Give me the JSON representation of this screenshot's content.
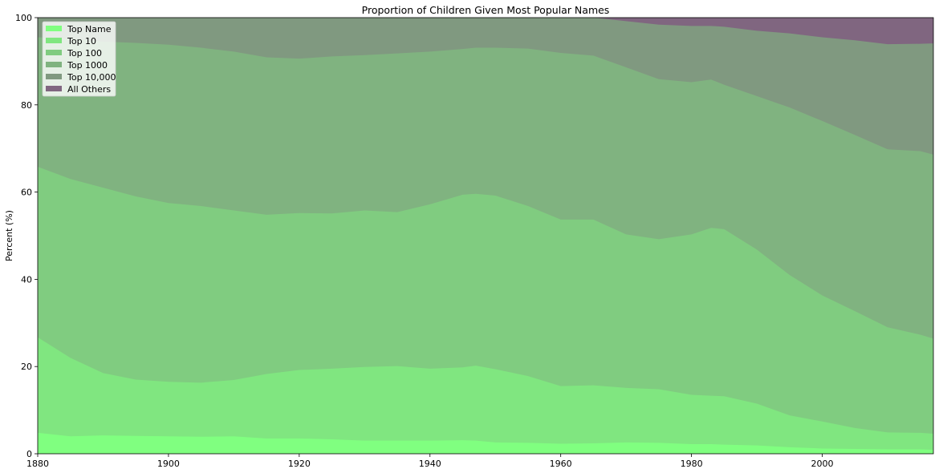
{
  "chart_data": {
    "type": "area",
    "stacked": true,
    "title": "Proportion of Children Given Most Popular Names",
    "xlabel": "",
    "ylabel": "Percent (%)",
    "xlim": [
      1880,
      2017
    ],
    "ylim": [
      0,
      100
    ],
    "x_ticks": [
      1880,
      1900,
      1920,
      1940,
      1960,
      1980,
      2000
    ],
    "y_ticks": [
      0,
      20,
      40,
      60,
      80,
      100
    ],
    "grid": false,
    "legend_position": "top-left",
    "x": [
      1880,
      1885,
      1890,
      1895,
      1900,
      1905,
      1910,
      1915,
      1920,
      1925,
      1930,
      1935,
      1940,
      1945,
      1947,
      1950,
      1955,
      1960,
      1965,
      1970,
      1975,
      1980,
      1983,
      1985,
      1990,
      1995,
      2000,
      2005,
      2010,
      2015,
      2017
    ],
    "series": [
      {
        "name": "Top Name",
        "color": "#80ff80",
        "values": [
          4.8,
          4.0,
          4.2,
          4.1,
          4.0,
          3.9,
          4.0,
          3.5,
          3.5,
          3.3,
          3.0,
          3.0,
          3.0,
          3.1,
          3.0,
          2.6,
          2.5,
          2.3,
          2.4,
          2.6,
          2.5,
          2.2,
          2.2,
          2.1,
          1.9,
          1.5,
          1.2,
          1.1,
          1.0,
          1.0,
          0.9
        ]
      },
      {
        "name": "Top 10",
        "color": "#80e680",
        "values": [
          26.7,
          22.0,
          18.5,
          17.0,
          16.5,
          16.3,
          16.9,
          18.3,
          19.2,
          19.5,
          19.9,
          20.1,
          19.5,
          19.8,
          20.2,
          19.4,
          17.8,
          15.5,
          15.7,
          15.1,
          14.8,
          13.5,
          13.3,
          13.2,
          11.5,
          8.8,
          7.4,
          5.9,
          4.9,
          4.8,
          4.6
        ]
      },
      {
        "name": "Top 100",
        "color": "#80cc80",
        "values": [
          65.8,
          63.0,
          61.0,
          59.0,
          57.5,
          56.8,
          55.8,
          54.8,
          55.2,
          55.1,
          55.8,
          55.4,
          57.2,
          59.4,
          59.6,
          59.2,
          56.8,
          53.7,
          53.7,
          50.3,
          49.2,
          50.3,
          51.8,
          51.5,
          46.8,
          41.0,
          36.3,
          32.7,
          29.0,
          27.3,
          26.4
        ]
      },
      {
        "name": "Top 1000",
        "color": "#80b380",
        "values": [
          95.5,
          95.2,
          94.5,
          94.2,
          93.8,
          93.1,
          92.2,
          90.9,
          90.6,
          91.1,
          91.4,
          91.8,
          92.2,
          92.8,
          93.1,
          93.1,
          92.9,
          91.9,
          91.3,
          88.6,
          85.9,
          85.2,
          85.8,
          84.6,
          82.0,
          79.4,
          76.3,
          73.1,
          69.8,
          69.4,
          68.6
        ]
      },
      {
        "name": "Top 10,000",
        "color": "#809980",
        "values": [
          100,
          100,
          100,
          100,
          100,
          100,
          100,
          100,
          100,
          100,
          100,
          100,
          100,
          100,
          100,
          100,
          100,
          100,
          100,
          99.2,
          98.4,
          98.1,
          98.1,
          97.9,
          97.0,
          96.4,
          95.5,
          94.8,
          93.9,
          94.0,
          94.1
        ]
      },
      {
        "name": "All Others",
        "color": "#806680",
        "values": [
          100,
          100,
          100,
          100,
          100,
          100,
          100,
          100,
          100,
          100,
          100,
          100,
          100,
          100,
          100,
          100,
          100,
          100,
          100,
          100,
          100,
          100,
          100,
          100,
          100,
          100,
          100,
          100,
          100,
          100,
          100
        ]
      }
    ]
  }
}
